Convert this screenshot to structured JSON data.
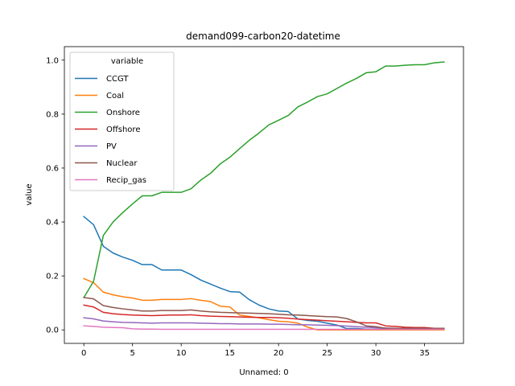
{
  "chart_data": {
    "type": "line",
    "title": "demand099-carbon20-datetime",
    "xlabel": "Unnamed: 0",
    "ylabel": "value",
    "xlim": [
      -2,
      39
    ],
    "ylim": [
      -0.05,
      1.05
    ],
    "xticks": [
      0,
      5,
      10,
      15,
      20,
      25,
      30,
      35
    ],
    "yticks": [
      0.0,
      0.2,
      0.4,
      0.6,
      0.8,
      1.0
    ],
    "xtick_labels": [
      "0",
      "5",
      "10",
      "15",
      "20",
      "25",
      "30",
      "35"
    ],
    "ytick_labels": [
      "0.0",
      "0.2",
      "0.4",
      "0.6",
      "0.8",
      "1.0"
    ],
    "legend_title": "variable",
    "legend_position": "top-left",
    "x": [
      0,
      1,
      2,
      3,
      4,
      5,
      6,
      7,
      8,
      9,
      10,
      11,
      12,
      13,
      14,
      15,
      16,
      17,
      18,
      19,
      20,
      21,
      22,
      23,
      24,
      25,
      26,
      27,
      28,
      29,
      30,
      31,
      32,
      33,
      34,
      35,
      36,
      37
    ],
    "series": [
      {
        "name": "CCGT",
        "color": "#1f77b4",
        "values": [
          0.42,
          0.39,
          0.31,
          0.285,
          0.27,
          0.258,
          0.242,
          0.242,
          0.222,
          0.222,
          0.222,
          0.205,
          0.185,
          0.17,
          0.155,
          0.142,
          0.14,
          0.112,
          0.092,
          0.078,
          0.07,
          0.068,
          0.04,
          0.035,
          0.032,
          0.025,
          0.018,
          0.005,
          0.005,
          0.003,
          0.003,
          0.003,
          0.003,
          0.003,
          0.003,
          0.003,
          0.003,
          0.003
        ]
      },
      {
        "name": "Coal",
        "color": "#ff7f0e",
        "values": [
          0.19,
          0.175,
          0.14,
          0.13,
          0.123,
          0.118,
          0.11,
          0.11,
          0.113,
          0.113,
          0.113,
          0.116,
          0.11,
          0.105,
          0.088,
          0.085,
          0.055,
          0.05,
          0.045,
          0.038,
          0.032,
          0.03,
          0.025,
          0.01,
          0.0,
          0.0,
          0.0,
          0.0,
          0.0,
          0.0,
          0.0,
          0.0,
          0.0,
          0.0,
          0.0,
          0.0,
          0.0,
          0.0
        ]
      },
      {
        "name": "Onshore",
        "color": "#2ca02c",
        "values": [
          0.12,
          0.18,
          0.35,
          0.4,
          0.435,
          0.467,
          0.497,
          0.497,
          0.51,
          0.51,
          0.51,
          0.523,
          0.555,
          0.58,
          0.615,
          0.64,
          0.672,
          0.703,
          0.73,
          0.76,
          0.777,
          0.795,
          0.827,
          0.845,
          0.865,
          0.875,
          0.895,
          0.915,
          0.932,
          0.953,
          0.957,
          0.978,
          0.978,
          0.981,
          0.983,
          0.983,
          0.99,
          0.993
        ]
      },
      {
        "name": "Offshore",
        "color": "#d62728",
        "values": [
          0.092,
          0.085,
          0.065,
          0.06,
          0.057,
          0.055,
          0.054,
          0.053,
          0.054,
          0.055,
          0.055,
          0.056,
          0.053,
          0.051,
          0.05,
          0.049,
          0.048,
          0.047,
          0.046,
          0.046,
          0.045,
          0.043,
          0.04,
          0.038,
          0.036,
          0.034,
          0.032,
          0.03,
          0.028,
          0.026,
          0.026,
          0.015,
          0.013,
          0.01,
          0.009,
          0.009,
          0.006,
          0.006
        ]
      },
      {
        "name": "PV",
        "color": "#9467bd",
        "values": [
          0.045,
          0.041,
          0.033,
          0.03,
          0.028,
          0.027,
          0.026,
          0.025,
          0.026,
          0.026,
          0.026,
          0.026,
          0.025,
          0.024,
          0.023,
          0.023,
          0.022,
          0.022,
          0.022,
          0.021,
          0.021,
          0.02,
          0.019,
          0.019,
          0.018,
          0.017,
          0.016,
          0.014,
          0.012,
          0.01,
          0.008,
          0.007,
          0.006,
          0.005,
          0.005,
          0.004,
          0.004,
          0.004
        ]
      },
      {
        "name": "Nuclear",
        "color": "#8c564b",
        "values": [
          0.12,
          0.115,
          0.09,
          0.083,
          0.078,
          0.074,
          0.07,
          0.07,
          0.072,
          0.072,
          0.072,
          0.074,
          0.07,
          0.067,
          0.065,
          0.064,
          0.063,
          0.062,
          0.061,
          0.06,
          0.058,
          0.056,
          0.055,
          0.053,
          0.051,
          0.049,
          0.048,
          0.042,
          0.03,
          0.015,
          0.012,
          0.006,
          0.006,
          0.006,
          0.006,
          0.006,
          0.006,
          0.006
        ]
      },
      {
        "name": "Recip_gas",
        "color": "#e377c2",
        "values": [
          0.015,
          0.013,
          0.01,
          0.009,
          0.008,
          0.004,
          0.003,
          0.003,
          0.002,
          0.002,
          0.002,
          0.002,
          0.002,
          0.002,
          0.002,
          0.002,
          0.002,
          0.002,
          0.002,
          0.002,
          0.002,
          0.002,
          0.002,
          0.002,
          0.002,
          0.002,
          0.002,
          0.002,
          0.002,
          0.002,
          0.002,
          0.002,
          0.002,
          0.002,
          0.002,
          0.002,
          0.002,
          0.002
        ]
      }
    ]
  }
}
